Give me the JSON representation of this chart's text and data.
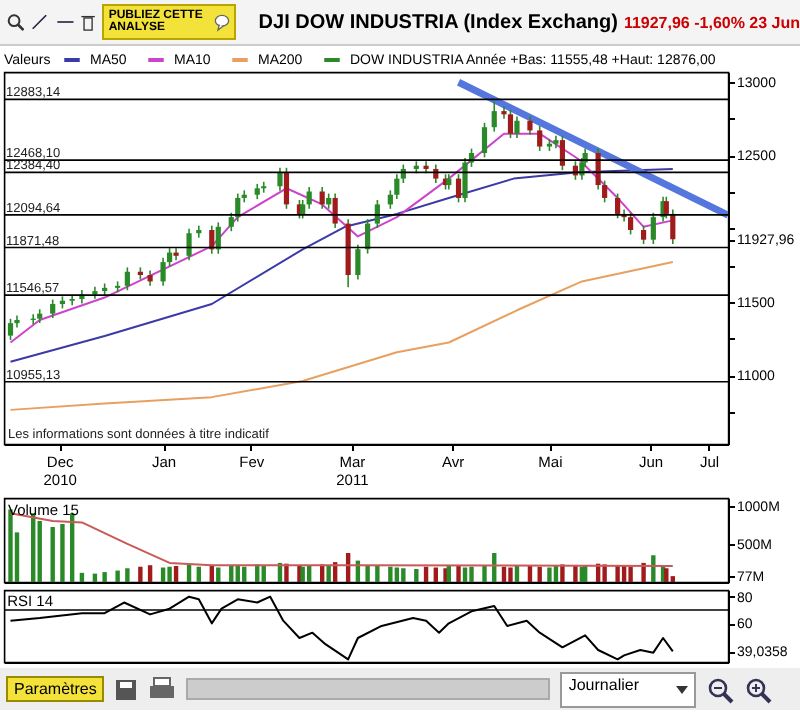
{
  "chart_data": [
    {
      "type": "other",
      "title": "DJI DOW INDUSTRIA (Index Exchang)",
      "subtitle": "11927,96 -1,60% 23 Jun",
      "annotations": [
        "PUBLIEZ CETTE ANALYSE"
      ]
    },
    {
      "type": "candlestick",
      "legend": "top left",
      "legend_title": "Valeurs",
      "xlim": [
        "2010-11-29",
        "2011-07-10"
      ],
      "ylim": [
        10530,
        13070
      ],
      "xticks": [
        {
          "value": "2010-12-16",
          "label": "Dec\n2010"
        },
        {
          "value": "2011-01-17",
          "label": "Jan"
        },
        {
          "value": "2011-02-13",
          "label": "Fev"
        },
        {
          "value": "2011-03-16",
          "label": "Mar\n2011"
        },
        {
          "value": "2011-04-16",
          "label": "Avr"
        },
        {
          "value": "2011-05-16",
          "label": "Mai"
        },
        {
          "value": "2011-06-16",
          "label": "Jun"
        },
        {
          "value": "2011-07-04",
          "label": "Jul"
        }
      ],
      "yticks": [
        13000,
        {
          "value": 12750,
          "label": null
        },
        12500,
        {
          "value": 12250,
          "label": null
        },
        {
          "value": 12000,
          "label": null
        },
        {
          "value": 11927.96,
          "label": "11927,96"
        },
        {
          "value": 11750,
          "label": null
        },
        11500,
        {
          "value": 11250,
          "label": null
        },
        11000,
        {
          "value": 10750,
          "label": null
        }
      ],
      "ref_lines": [
        {
          "axis": "y",
          "value": 12883.14,
          "label": "12883,14",
          "color": "#000000"
        },
        {
          "axis": "y",
          "value": 12468.1,
          "label": "12468,10",
          "color": "#000000"
        },
        {
          "axis": "y",
          "value": 12384.4,
          "label": "12384,40",
          "color": "#000000"
        },
        {
          "axis": "y",
          "value": 12094.64,
          "label": "12094,64",
          "color": "#000000"
        },
        {
          "axis": "y",
          "value": 11871.48,
          "label": "11871,48",
          "color": "#000000"
        },
        {
          "axis": "y",
          "value": 11546.57,
          "label": "11546,57",
          "color": "#000000"
        },
        {
          "axis": "y",
          "value": 10955.13,
          "label": "10955,13",
          "color": "#000000"
        }
      ],
      "annotations": [
        "Les informations sont données à titre indicatif"
      ],
      "series": [
        {
          "name": "MA50",
          "type": "line",
          "color": "#3a3aa8",
          "x": [
            "2010-12-01",
            "2010-12-30",
            "2011-02-01",
            "2011-03-01",
            "2011-03-14",
            "2011-03-30",
            "2011-04-15",
            "2011-05-05",
            "2011-05-25",
            "2011-06-23"
          ],
          "values": [
            11092,
            11267,
            11486,
            11859,
            12013,
            12101,
            12210,
            12342,
            12386,
            12408
          ]
        },
        {
          "name": "MA10",
          "type": "line",
          "color": "#cc44cc",
          "x": [
            "2010-12-01",
            "2010-12-10",
            "2010-12-30",
            "2011-02-01",
            "2011-02-09",
            "2011-02-24",
            "2011-03-07",
            "2011-03-18",
            "2011-03-30",
            "2011-04-15",
            "2011-05-02",
            "2011-05-13",
            "2011-05-25",
            "2011-06-06",
            "2011-06-14",
            "2011-06-23"
          ],
          "values": [
            11223,
            11377,
            11530,
            11881,
            12079,
            12276,
            12166,
            11947,
            12079,
            12342,
            12649,
            12649,
            12474,
            12210,
            12013,
            12057
          ]
        },
        {
          "name": "MA200",
          "type": "line",
          "color": "#e8a060",
          "x": [
            "2010-12-01",
            "2010-12-30",
            "2011-02-01",
            "2011-03-01",
            "2011-03-30",
            "2011-04-15",
            "2011-05-06",
            "2011-05-26",
            "2011-06-23"
          ],
          "values": [
            10763,
            10806,
            10850,
            10960,
            11157,
            11223,
            11443,
            11640,
            11772
          ]
        },
        {
          "type": "line",
          "color": "#5577dd",
          "x": [
            "2011-04-18",
            "2011-07-10"
          ],
          "values": [
            13000,
            12092
          ]
        },
        {
          "name": "DOW INDUSTRIA Année +Bas: 11555,48 +Haut: 12876,00",
          "type": "candlestick",
          "color": "#2a8a2a",
          "x": [
            "2010-12-01",
            "2010-12-03",
            "2010-12-08",
            "2010-12-10",
            "2010-12-14",
            "2010-12-17",
            "2010-12-20",
            "2010-12-23",
            "2010-12-27",
            "2010-12-30",
            "2011-01-03",
            "2011-01-06",
            "2011-01-10",
            "2011-01-13",
            "2011-01-17",
            "2011-01-19",
            "2011-01-21",
            "2011-01-25",
            "2011-01-28",
            "2011-02-01",
            "2011-02-03",
            "2011-02-07",
            "2011-02-09",
            "2011-02-11",
            "2011-02-15",
            "2011-02-17",
            "2011-02-22",
            "2011-02-24",
            "2011-02-28",
            "2011-03-01",
            "2011-03-03",
            "2011-03-07",
            "2011-03-09",
            "2011-03-11",
            "2011-03-15",
            "2011-03-18",
            "2011-03-21",
            "2011-03-24",
            "2011-03-28",
            "2011-03-30",
            "2011-04-01",
            "2011-04-05",
            "2011-04-08",
            "2011-04-11",
            "2011-04-14",
            "2011-04-15",
            "2011-04-18",
            "2011-04-20",
            "2011-04-22",
            "2011-04-26",
            "2011-04-29",
            "2011-05-02",
            "2011-05-04",
            "2011-05-06",
            "2011-05-10",
            "2011-05-13",
            "2011-05-16",
            "2011-05-18",
            "2011-05-20",
            "2011-05-24",
            "2011-05-26",
            "2011-05-27",
            "2011-05-31",
            "2011-06-02",
            "2011-06-06",
            "2011-06-08",
            "2011-06-10",
            "2011-06-14",
            "2011-06-17",
            "2011-06-20",
            "2011-06-21",
            "2011-06-23"
          ],
          "ohlc": [
            [
              11270,
              11385,
              11240,
              11355
            ],
            [
              11355,
              11407,
              11325,
              11377
            ],
            [
              11377,
              11416,
              11347,
              11386
            ],
            [
              11386,
              11450,
              11356,
              11420
            ],
            [
              11420,
              11516,
              11390,
              11486
            ],
            [
              11486,
              11538,
              11456,
              11508
            ],
            [
              11508,
              11550,
              11478,
              11520
            ],
            [
              11520,
              11582,
              11490,
              11552
            ],
            [
              11552,
              11604,
              11522,
              11574
            ],
            [
              11574,
              11626,
              11544,
              11596
            ],
            [
              11596,
              11640,
              11566,
              11610
            ],
            [
              11610,
              11736,
              11580,
              11706
            ],
            [
              11706,
              11736,
              11654,
              11684
            ],
            [
              11684,
              11714,
              11610,
              11640
            ],
            [
              11640,
              11802,
              11610,
              11772
            ],
            [
              11772,
              11867,
              11742,
              11837
            ],
            [
              11837,
              11867,
              11785,
              11815
            ],
            [
              11815,
              11999,
              11785,
              11969
            ],
            [
              11969,
              12021,
              11939,
              11991
            ],
            [
              11991,
              12021,
              11829,
              11859
            ],
            [
              11859,
              12043,
              11829,
              12013
            ],
            [
              12013,
              12109,
              11983,
              12079
            ],
            [
              12079,
              12240,
              12049,
              12210
            ],
            [
              12210,
              12262,
              12180,
              12232
            ],
            [
              12232,
              12306,
              12202,
              12276
            ],
            [
              12276,
              12320,
              12246,
              12290
            ],
            [
              12290,
              12416,
              12260,
              12386
            ],
            [
              12386,
              12416,
              12136,
              12166
            ],
            [
              12166,
              12196,
              12070,
              12100
            ],
            [
              12100,
              12196,
              12070,
              12166
            ],
            [
              12166,
              12284,
              12136,
              12254
            ],
            [
              12254,
              12284,
              12136,
              12166
            ],
            [
              12166,
              12240,
              12136,
              12210
            ],
            [
              12210,
              12240,
              12005,
              12035
            ],
            [
              12035,
              12065,
              11600,
              11684
            ],
            [
              11684,
              11890,
              11654,
              11860
            ],
            [
              11860,
              12065,
              11830,
              12035
            ],
            [
              12035,
              12196,
              12005,
              12166
            ],
            [
              12166,
              12262,
              12136,
              12232
            ],
            [
              12232,
              12372,
              12202,
              12342
            ],
            [
              12342,
              12438,
              12312,
              12408
            ],
            [
              12408,
              12460,
              12378,
              12430
            ],
            [
              12430,
              12460,
              12378,
              12408
            ],
            [
              12408,
              12438,
              12312,
              12342
            ],
            [
              12342,
              12372,
              12268,
              12298
            ],
            [
              12298,
              12372,
              12268,
              12342
            ],
            [
              12342,
              12372,
              12180,
              12210
            ],
            [
              12210,
              12482,
              12180,
              12452
            ],
            [
              12452,
              12547,
              12422,
              12517
            ],
            [
              12517,
              12723,
              12487,
              12693
            ],
            [
              12693,
              12868,
              12663,
              12803
            ],
            [
              12803,
              12833,
              12751,
              12781
            ],
            [
              12781,
              12811,
              12619,
              12649
            ],
            [
              12649,
              12767,
              12619,
              12737
            ],
            [
              12737,
              12767,
              12641,
              12671
            ],
            [
              12671,
              12701,
              12531,
              12561
            ],
            [
              12561,
              12610,
              12531,
              12580
            ],
            [
              12580,
              12635,
              12550,
              12605
            ],
            [
              12605,
              12635,
              12400,
              12430
            ],
            [
              12430,
              12460,
              12334,
              12364
            ],
            [
              12364,
              12482,
              12334,
              12452
            ],
            [
              12452,
              12547,
              12422,
              12517
            ],
            [
              12517,
              12547,
              12268,
              12298
            ],
            [
              12298,
              12328,
              12180,
              12210
            ],
            [
              12210,
              12240,
              12071,
              12101
            ],
            [
              12101,
              12131,
              12049,
              12079
            ],
            [
              12079,
              12109,
              11961,
              11991
            ],
            [
              11991,
              12021,
              11895,
              11925
            ],
            [
              11925,
              12109,
              11895,
              12079
            ],
            [
              12079,
              12218,
              12049,
              12188
            ],
            [
              12188,
              12218,
              12071,
              12101
            ],
            [
              12101,
              12131,
              11895,
              11927.96
            ]
          ],
          "colors": [
            "#2a8a2a",
            "#2a8a2a",
            "#2a8a2a",
            "#2a8a2a",
            "#2a8a2a",
            "#2a8a2a",
            "#2a8a2a",
            "#2a8a2a",
            "#2a8a2a",
            "#2a8a2a",
            "#2a8a2a",
            "#2a8a2a",
            "#a01c1c",
            "#a01c1c",
            "#2a8a2a",
            "#2a8a2a",
            "#a01c1c",
            "#2a8a2a",
            "#2a8a2a",
            "#a01c1c",
            "#2a8a2a",
            "#2a8a2a",
            "#2a8a2a",
            "#2a8a2a",
            "#2a8a2a",
            "#2a8a2a",
            "#2a8a2a",
            "#a01c1c",
            "#a01c1c",
            "#2a8a2a",
            "#2a8a2a",
            "#a01c1c",
            "#2a8a2a",
            "#a01c1c",
            "#a01c1c",
            "#2a8a2a",
            "#2a8a2a",
            "#2a8a2a",
            "#2a8a2a",
            "#2a8a2a",
            "#2a8a2a",
            "#2a8a2a",
            "#a01c1c",
            "#a01c1c",
            "#a01c1c",
            "#2a8a2a",
            "#a01c1c",
            "#2a8a2a",
            "#2a8a2a",
            "#2a8a2a",
            "#2a8a2a",
            "#a01c1c",
            "#a01c1c",
            "#2a8a2a",
            "#a01c1c",
            "#a01c1c",
            "#2a8a2a",
            "#2a8a2a",
            "#a01c1c",
            "#a01c1c",
            "#2a8a2a",
            "#2a8a2a",
            "#a01c1c",
            "#a01c1c",
            "#a01c1c",
            "#a01c1c",
            "#a01c1c",
            "#a01c1c",
            "#2a8a2a",
            "#2a8a2a",
            "#a01c1c",
            "#a01c1c"
          ]
        }
      ]
    },
    {
      "type": "bar",
      "title": "Volume 15",
      "tick_labels": "y",
      "xlim": [
        "2010-11-29",
        "2011-07-10"
      ],
      "ylim": [
        0,
        1100
      ],
      "yticks": [
        {
          "value": 77,
          "label": "77M"
        },
        {
          "value": 500,
          "label": "500M"
        },
        {
          "value": 1000,
          "label": "1000M"
        }
      ],
      "x": [
        "2010-12-01",
        "2010-12-03",
        "2010-12-08",
        "2010-12-10",
        "2010-12-14",
        "2010-12-17",
        "2010-12-20",
        "2010-12-23",
        "2010-12-27",
        "2010-12-30",
        "2011-01-03",
        "2011-01-06",
        "2011-01-10",
        "2011-01-13",
        "2011-01-17",
        "2011-01-19",
        "2011-01-21",
        "2011-01-25",
        "2011-01-28",
        "2011-02-01",
        "2011-02-03",
        "2011-02-07",
        "2011-02-09",
        "2011-02-11",
        "2011-02-15",
        "2011-02-17",
        "2011-02-22",
        "2011-02-24",
        "2011-02-28",
        "2011-03-01",
        "2011-03-03",
        "2011-03-07",
        "2011-03-09",
        "2011-03-11",
        "2011-03-15",
        "2011-03-18",
        "2011-03-21",
        "2011-03-24",
        "2011-03-28",
        "2011-03-30",
        "2011-04-01",
        "2011-04-05",
        "2011-04-08",
        "2011-04-11",
        "2011-04-14",
        "2011-04-15",
        "2011-04-18",
        "2011-04-20",
        "2011-04-22",
        "2011-04-26",
        "2011-04-29",
        "2011-05-02",
        "2011-05-04",
        "2011-05-06",
        "2011-05-10",
        "2011-05-13",
        "2011-05-16",
        "2011-05-18",
        "2011-05-20",
        "2011-05-24",
        "2011-05-26",
        "2011-05-27",
        "2011-05-31",
        "2011-06-02",
        "2011-06-06",
        "2011-06-08",
        "2011-06-10",
        "2011-06-14",
        "2011-06-17",
        "2011-06-20",
        "2011-06-21",
        "2011-06-23"
      ],
      "series": [
        {
          "type": "bar",
          "values": [
            950,
            650,
            900,
            800,
            720,
            760,
            900,
            120,
            110,
            130,
            150,
            180,
            200,
            220,
            190,
            200,
            210,
            230,
            200,
            220,
            190,
            210,
            220,
            200,
            230,
            210,
            250,
            240,
            220,
            200,
            210,
            230,
            220,
            260,
            380,
            280,
            220,
            210,
            200,
            190,
            180,
            170,
            200,
            190,
            180,
            210,
            220,
            190,
            200,
            210,
            380,
            200,
            190,
            210,
            220,
            200,
            190,
            210,
            230,
            220,
            200,
            210,
            240,
            230,
            220,
            210,
            200,
            250,
            350,
            220,
            180,
            77
          ],
          "colors": [
            "#2a8a2a",
            "#2a8a2a",
            "#2a8a2a",
            "#2a8a2a",
            "#2a8a2a",
            "#2a8a2a",
            "#2a8a2a",
            "#2a8a2a",
            "#2a8a2a",
            "#2a8a2a",
            "#2a8a2a",
            "#2a8a2a",
            "#a01c1c",
            "#a01c1c",
            "#2a8a2a",
            "#2a8a2a",
            "#a01c1c",
            "#2a8a2a",
            "#2a8a2a",
            "#a01c1c",
            "#2a8a2a",
            "#2a8a2a",
            "#2a8a2a",
            "#2a8a2a",
            "#2a8a2a",
            "#2a8a2a",
            "#2a8a2a",
            "#a01c1c",
            "#a01c1c",
            "#2a8a2a",
            "#2a8a2a",
            "#a01c1c",
            "#2a8a2a",
            "#a01c1c",
            "#a01c1c",
            "#2a8a2a",
            "#2a8a2a",
            "#2a8a2a",
            "#2a8a2a",
            "#2a8a2a",
            "#2a8a2a",
            "#2a8a2a",
            "#a01c1c",
            "#a01c1c",
            "#a01c1c",
            "#2a8a2a",
            "#a01c1c",
            "#2a8a2a",
            "#2a8a2a",
            "#2a8a2a",
            "#2a8a2a",
            "#a01c1c",
            "#a01c1c",
            "#2a8a2a",
            "#a01c1c",
            "#a01c1c",
            "#2a8a2a",
            "#2a8a2a",
            "#a01c1c",
            "#a01c1c",
            "#2a8a2a",
            "#2a8a2a",
            "#a01c1c",
            "#a01c1c",
            "#a01c1c",
            "#a01c1c",
            "#a01c1c",
            "#a01c1c",
            "#2a8a2a",
            "#2a8a2a",
            "#a01c1c",
            "#a01c1c"
          ]
        },
        {
          "type": "line",
          "color": "#c85a5a",
          "x": [
            "2010-12-01",
            "2010-12-14",
            "2010-12-23",
            "2011-01-06",
            "2011-01-19",
            "2011-02-01",
            "2011-03-15",
            "2011-06-23"
          ],
          "values": [
            900,
            800,
            780,
            500,
            250,
            220,
            220,
            210
          ]
        }
      ]
    },
    {
      "type": "line",
      "title": "RSI 14",
      "tick_labels": "y",
      "color": "#000000",
      "xlim": [
        "2010-11-29",
        "2011-07-10"
      ],
      "ylim": [
        31,
        85
      ],
      "yticks": [
        {
          "value": 39.0358,
          "label": "39,0358"
        },
        60,
        80
      ],
      "ref_lines": [
        {
          "axis": "y",
          "value": 70,
          "color": "#000000"
        }
      ],
      "x": [
        "2010-12-01",
        "2010-12-10",
        "2010-12-23",
        "2010-12-30",
        "2011-01-05",
        "2011-01-13",
        "2011-01-19",
        "2011-01-25",
        "2011-01-28",
        "2011-02-01",
        "2011-02-04",
        "2011-02-09",
        "2011-02-15",
        "2011-02-19",
        "2011-02-23",
        "2011-02-28",
        "2011-03-04",
        "2011-03-08",
        "2011-03-15",
        "2011-03-18",
        "2011-03-25",
        "2011-04-04",
        "2011-04-08",
        "2011-04-12",
        "2011-04-15",
        "2011-04-22",
        "2011-04-29",
        "2011-05-03",
        "2011-05-09",
        "2011-05-13",
        "2011-05-20",
        "2011-05-27",
        "2011-05-31",
        "2011-06-06",
        "2011-06-08",
        "2011-06-13",
        "2011-06-17",
        "2011-06-20",
        "2011-06-23"
      ],
      "values": [
        62,
        64,
        67.6,
        67.6,
        75.6,
        66.7,
        71,
        80,
        78,
        60,
        71,
        78,
        75.6,
        80,
        62,
        49,
        53,
        44.4,
        33,
        49,
        57.8,
        64,
        62,
        53,
        60,
        69,
        73,
        58,
        62,
        53,
        42,
        51,
        40,
        33,
        36,
        40,
        38,
        49,
        39.0358
      ]
    },
    {
      "type": "other",
      "annotations": [
        "Paramètres",
        "Journalier"
      ]
    }
  ]
}
